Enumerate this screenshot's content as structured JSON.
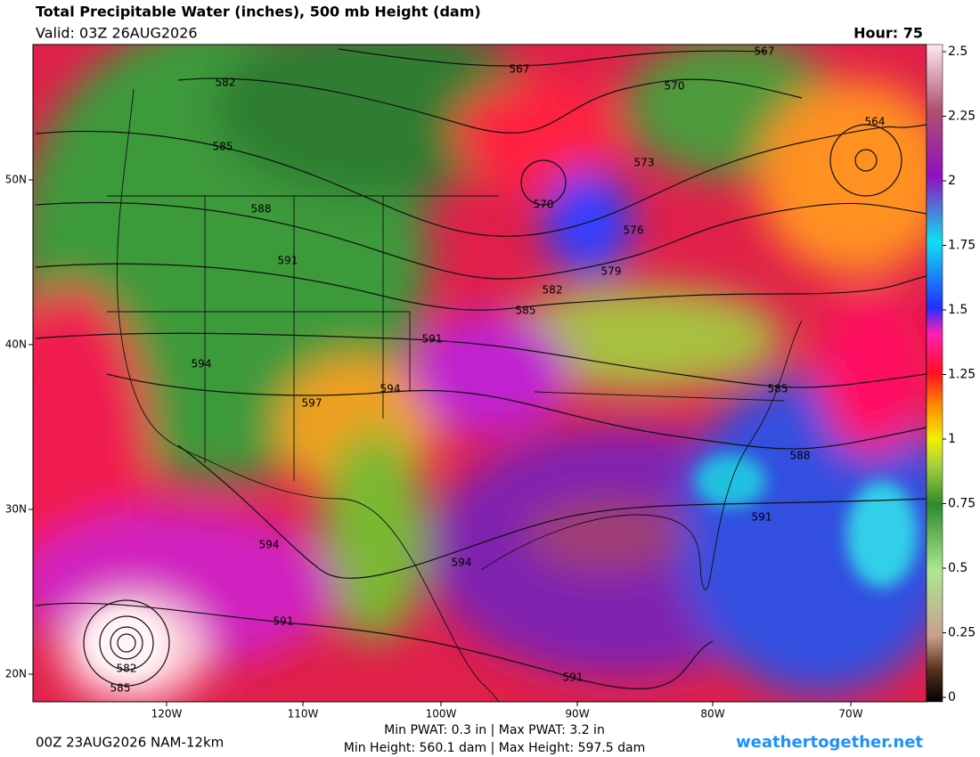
{
  "header": {
    "title": "Total Precipitable Water (inches), 500 mb Height (dam)",
    "valid": "Valid: 03Z 26AUG2026",
    "hour": "Hour: 75"
  },
  "colorbar": {
    "ticks": [
      0,
      0.25,
      0.5,
      0.75,
      1,
      1.25,
      1.5,
      1.75,
      2,
      2.25,
      2.5
    ],
    "range": [
      0,
      2.5
    ]
  },
  "map": {
    "lat_labels": [
      "50N",
      "40N",
      "30N",
      "20N"
    ],
    "lon_labels": [
      "120W",
      "110W",
      "100W",
      "90W",
      "80W",
      "70W"
    ],
    "contour_labels": [
      567,
      567,
      570,
      582,
      585,
      588,
      591,
      573,
      564,
      570,
      576,
      579,
      582,
      585,
      591,
      594,
      594,
      597,
      585,
      588,
      591,
      594,
      594,
      591,
      582,
      585,
      591
    ]
  },
  "footer": {
    "run": "00Z 23AUG2026 NAM-12km",
    "pwat": "Min PWAT:   0.3 in | Max PWAT:   3.2 in",
    "height": "Min Height: 560.1 dam | Max Height: 597.5 dam",
    "site": "weathertogether.net"
  }
}
